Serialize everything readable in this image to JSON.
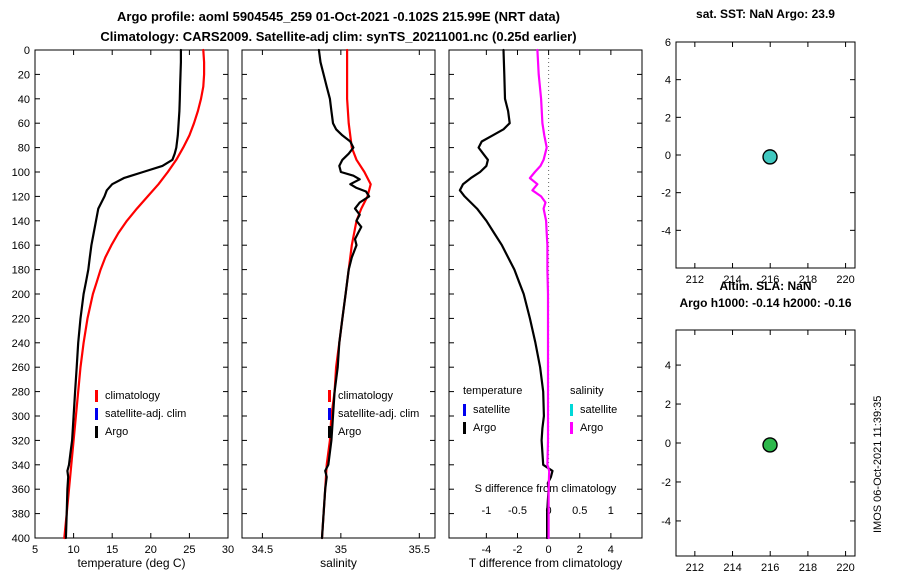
{
  "header": {
    "title_line1": "Argo profile: aoml 5904545_259 01-Oct-2021 -0.102S 215.99E (NRT data)",
    "title_line2": "Climatology: CARS2009. Satellite-adj clim: synTS_20211001.nc (0.25d earlier)"
  },
  "watermark": "IMOS 06-Oct-2021 11:39:35",
  "colors": {
    "climatology": "#ff0000",
    "satellite_adj": "#0000ee",
    "argo": "#000000",
    "satellite_salinity": "#00d8d8",
    "argo_salinity_diff": "#ff00ff",
    "sst_marker": "#40c8c0",
    "sla_marker": "#2db84b"
  },
  "chart_data": [
    {
      "type": "line",
      "id": "temperature-profile",
      "xlabel": "temperature (deg C)",
      "xlim": [
        5,
        30
      ],
      "xticks": [
        5,
        10,
        15,
        20,
        25,
        30
      ],
      "ylim": [
        0,
        400
      ],
      "ydir": "reverse",
      "yticks": [
        0,
        20,
        40,
        60,
        80,
        100,
        120,
        140,
        160,
        180,
        200,
        220,
        240,
        260,
        280,
        300,
        320,
        340,
        360,
        380,
        400
      ],
      "legend": [
        {
          "label": "climatology",
          "color": "#ff0000"
        },
        {
          "label": "satellite-adj. clim",
          "color": "#0000ee"
        },
        {
          "label": "Argo",
          "color": "#000000"
        }
      ],
      "series": [
        {
          "name": "climatology",
          "color": "#ff0000",
          "width": 2.2,
          "depth": [
            0,
            10,
            20,
            30,
            40,
            50,
            60,
            70,
            80,
            90,
            100,
            110,
            120,
            130,
            140,
            150,
            160,
            170,
            180,
            190,
            200,
            220,
            240,
            260,
            280,
            300,
            320,
            340,
            360,
            380,
            400
          ],
          "values": [
            26.8,
            26.9,
            26.9,
            26.8,
            26.5,
            26.1,
            25.6,
            25.0,
            24.2,
            23.3,
            22.2,
            21.0,
            19.6,
            18.2,
            16.9,
            15.8,
            14.9,
            14.1,
            13.5,
            13.0,
            12.5,
            11.8,
            11.3,
            10.9,
            10.6,
            10.3,
            10.0,
            9.7,
            9.4,
            9.1,
            8.8
          ]
        },
        {
          "name": "satellite-adj. clim",
          "color": "#0000ee",
          "width": 2,
          "depth": [],
          "values": []
        },
        {
          "name": "Argo",
          "color": "#000000",
          "width": 2.2,
          "depth": [
            0,
            10,
            20,
            30,
            40,
            50,
            60,
            70,
            80,
            85,
            90,
            95,
            100,
            105,
            110,
            115,
            120,
            125,
            130,
            140,
            150,
            160,
            170,
            180,
            190,
            200,
            220,
            240,
            260,
            280,
            300,
            320,
            330,
            340,
            345,
            350,
            360,
            380,
            400
          ],
          "values": [
            23.9,
            23.9,
            23.85,
            23.8,
            23.75,
            23.7,
            23.6,
            23.5,
            23.3,
            23.1,
            22.8,
            21.5,
            19.0,
            16.5,
            15.0,
            14.3,
            14.0,
            13.6,
            13.2,
            12.9,
            12.6,
            12.3,
            12.1,
            11.9,
            11.6,
            11.3,
            10.9,
            10.6,
            10.4,
            10.2,
            10.0,
            9.8,
            9.6,
            9.4,
            9.2,
            9.3,
            9.2,
            9.1,
            9.0
          ]
        }
      ]
    },
    {
      "type": "line",
      "id": "salinity-profile",
      "xlabel": "salinity",
      "xlim": [
        34.37,
        35.6
      ],
      "xticks": [
        34.5,
        35,
        35.5
      ],
      "ylim": [
        0,
        400
      ],
      "ydir": "reverse",
      "yticks": [
        0,
        20,
        40,
        60,
        80,
        100,
        120,
        140,
        160,
        180,
        200,
        220,
        240,
        260,
        280,
        300,
        320,
        340,
        360,
        380,
        400
      ],
      "legend": [
        {
          "label": "climatology",
          "color": "#ff0000"
        },
        {
          "label": "satellite-adj. clim",
          "color": "#0000ee"
        },
        {
          "label": "Argo",
          "color": "#000000"
        }
      ],
      "series": [
        {
          "name": "climatology",
          "color": "#ff0000",
          "width": 2.2,
          "depth": [
            0,
            20,
            40,
            60,
            80,
            90,
            100,
            110,
            120,
            130,
            140,
            160,
            180,
            200,
            220,
            240,
            260,
            280,
            300,
            320,
            340,
            360,
            380,
            400
          ],
          "values": [
            35.04,
            35.04,
            35.04,
            35.05,
            35.07,
            35.1,
            35.15,
            35.19,
            35.17,
            35.13,
            35.1,
            35.07,
            35.05,
            35.03,
            35.01,
            34.99,
            34.97,
            34.96,
            34.94,
            34.93,
            34.91,
            34.9,
            34.89,
            34.88
          ]
        },
        {
          "name": "satellite-adj. clim",
          "color": "#0000ee",
          "width": 2,
          "depth": [],
          "values": []
        },
        {
          "name": "Argo",
          "color": "#000000",
          "width": 2.2,
          "depth": [
            0,
            10,
            20,
            30,
            40,
            50,
            60,
            65,
            70,
            75,
            80,
            85,
            90,
            95,
            100,
            103,
            106,
            110,
            113,
            116,
            120,
            125,
            130,
            135,
            140,
            145,
            150,
            155,
            160,
            170,
            180,
            200,
            220,
            240,
            260,
            280,
            300,
            320,
            340,
            345,
            350,
            360,
            380,
            400
          ],
          "values": [
            34.86,
            34.87,
            34.89,
            34.91,
            34.93,
            34.94,
            34.95,
            34.97,
            35.01,
            35.06,
            35.08,
            35.05,
            35.01,
            34.99,
            35.0,
            35.08,
            35.12,
            35.06,
            35.1,
            35.16,
            35.18,
            35.12,
            35.09,
            35.12,
            35.1,
            35.13,
            35.11,
            35.09,
            35.1,
            35.07,
            35.05,
            35.03,
            35.01,
            34.99,
            34.98,
            34.96,
            34.95,
            34.94,
            34.92,
            34.9,
            34.91,
            34.9,
            34.89,
            34.88
          ]
        }
      ]
    },
    {
      "type": "line",
      "id": "difference-profile",
      "xlabel": "T difference from climatology",
      "xlim": [
        -6.4,
        6.0
      ],
      "xticks": [
        -4,
        -2,
        0,
        2,
        4
      ],
      "secondary_axis": {
        "label": "S difference from climatology",
        "xlim": [
          -1.6,
          1.5
        ],
        "xticks": [
          -1,
          -0.5,
          0,
          0.5,
          1
        ]
      },
      "ylim": [
        0,
        400
      ],
      "ydir": "reverse",
      "yticks": [
        0,
        20,
        40,
        60,
        80,
        100,
        120,
        140,
        160,
        180,
        200,
        220,
        240,
        260,
        280,
        300,
        320,
        340,
        360,
        380,
        400
      ],
      "zero_line": true,
      "legend": {
        "temperature": {
          "header": "temperature",
          "items": [
            {
              "label": "satellite",
              "color": "#0000ee"
            },
            {
              "label": "Argo",
              "color": "#000000"
            }
          ]
        },
        "salinity": {
          "header": "salinity",
          "items": [
            {
              "label": "satellite",
              "color": "#00d8d8"
            },
            {
              "label": "Argo",
              "color": "#ff00ff"
            }
          ]
        }
      },
      "series": [
        {
          "name": "T difference Argo",
          "axis": "primary",
          "color": "#000000",
          "width": 2.2,
          "depth": [
            0,
            20,
            40,
            50,
            60,
            65,
            70,
            75,
            80,
            85,
            90,
            95,
            100,
            105,
            110,
            115,
            120,
            125,
            130,
            140,
            150,
            160,
            170,
            180,
            190,
            200,
            220,
            240,
            260,
            280,
            300,
            310,
            320,
            330,
            340,
            345,
            350,
            355,
            360,
            370,
            380,
            400
          ],
          "values": [
            -2.9,
            -2.85,
            -2.8,
            -2.6,
            -2.5,
            -2.9,
            -3.6,
            -4.3,
            -4.5,
            -4.2,
            -3.9,
            -4.0,
            -4.4,
            -5.0,
            -5.5,
            -5.7,
            -5.4,
            -5.0,
            -4.6,
            -4.0,
            -3.5,
            -3.0,
            -2.6,
            -2.2,
            -1.9,
            -1.6,
            -1.2,
            -0.85,
            -0.55,
            -0.35,
            -0.3,
            -0.4,
            -0.45,
            -0.4,
            -0.35,
            0.25,
            0.15,
            -0.05,
            0.0,
            -0.05,
            -0.1,
            -0.1
          ]
        },
        {
          "name": "S difference Argo",
          "axis": "secondary",
          "color": "#ff00ff",
          "width": 2.2,
          "depth": [
            0,
            20,
            40,
            60,
            70,
            80,
            90,
            95,
            100,
            105,
            110,
            115,
            120,
            125,
            130,
            140,
            150,
            160,
            180,
            200,
            240,
            280,
            320,
            340,
            345,
            360,
            400
          ],
          "values": [
            -0.18,
            -0.16,
            -0.12,
            -0.1,
            -0.07,
            -0.03,
            -0.08,
            -0.13,
            -0.22,
            -0.3,
            -0.18,
            -0.26,
            -0.12,
            -0.05,
            -0.08,
            -0.04,
            -0.03,
            -0.02,
            -0.02,
            -0.01,
            -0.01,
            -0.01,
            -0.01,
            -0.02,
            0.01,
            0.0,
            0.0
          ]
        }
      ]
    },
    {
      "type": "scatter",
      "id": "sst-position",
      "title": "sat. SST: NaN Argo: 23.9",
      "xlim": [
        211,
        220.5
      ],
      "xticks": [
        212,
        214,
        216,
        218,
        220
      ],
      "ylim": [
        -6,
        6
      ],
      "yticks": [
        6,
        4,
        2,
        0,
        -2,
        -4
      ],
      "points": [
        {
          "x": 215.99,
          "y": -0.1,
          "color": "#40c8c0",
          "edge": "#000000",
          "r": 7
        }
      ]
    },
    {
      "type": "scatter",
      "id": "sla-position",
      "title_line1": "Altim. SLA: NaN",
      "title_line2": "Argo h1000: -0.14 h2000: -0.16",
      "xlim": [
        211,
        220.5
      ],
      "xticks": [
        212,
        214,
        216,
        218,
        220
      ],
      "ylim": [
        -5.8,
        5.8
      ],
      "yticks": [
        4,
        2,
        0,
        -2,
        -4
      ],
      "points": [
        {
          "x": 215.99,
          "y": -0.1,
          "color": "#2db84b",
          "edge": "#000000",
          "r": 7
        }
      ]
    }
  ]
}
